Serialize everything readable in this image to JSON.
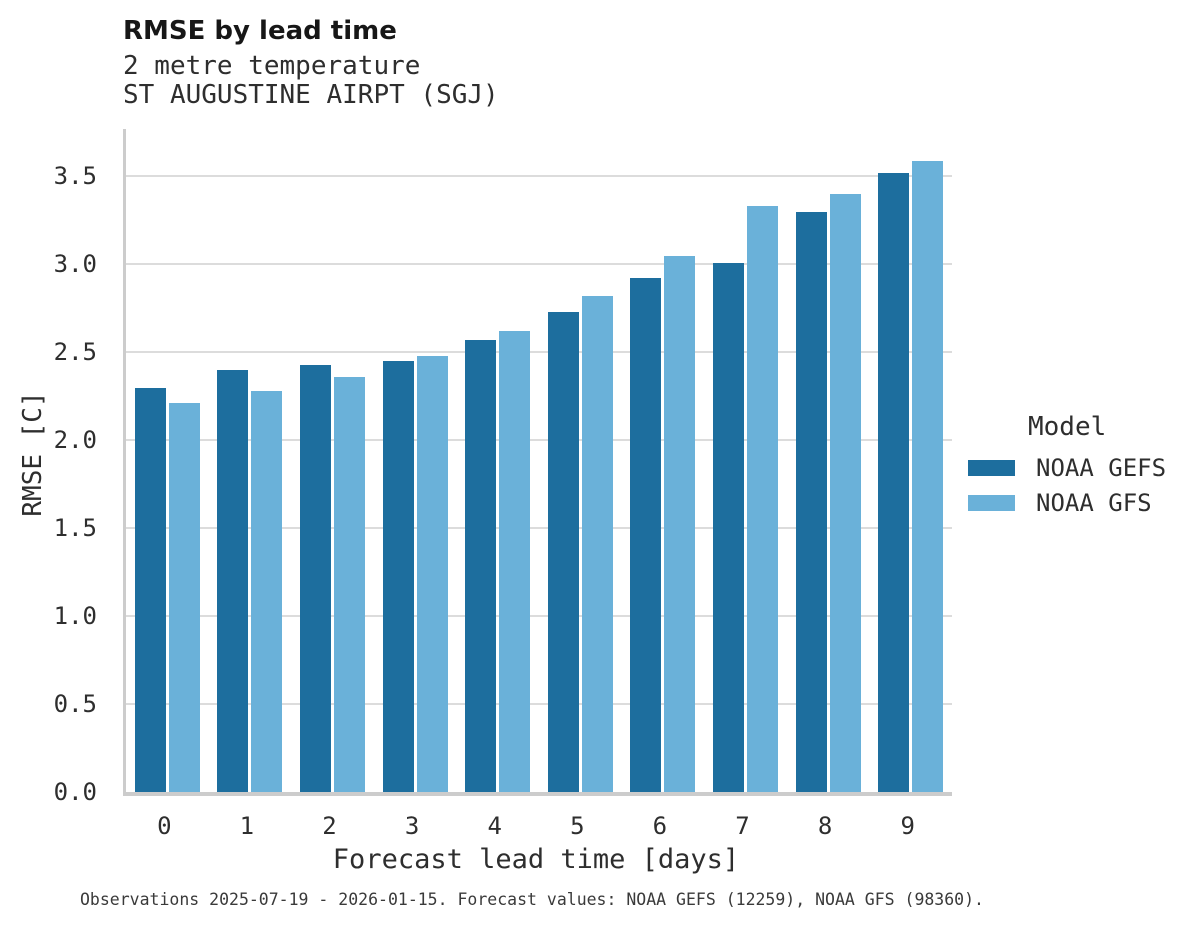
{
  "header": {
    "title": "RMSE by lead time",
    "subtitle1": "2 metre temperature",
    "subtitle2": "ST AUGUSTINE AIRPT (SGJ)"
  },
  "legend": {
    "title": "Model",
    "items": [
      {
        "label": "NOAA GEFS",
        "color": "#1d6e9e"
      },
      {
        "label": "NOAA GFS",
        "color": "#6ab1d9"
      }
    ]
  },
  "caption": "Observations 2025-07-19 - 2026-01-15. Forecast values: NOAA GEFS (12259), NOAA GFS (98360).",
  "chart_data": {
    "type": "bar",
    "title": "RMSE by lead time",
    "subtitle": [
      "2 metre temperature",
      "ST AUGUSTINE AIRPT (SGJ)"
    ],
    "categories": [
      "0",
      "1",
      "2",
      "3",
      "4",
      "5",
      "6",
      "7",
      "8",
      "9"
    ],
    "series": [
      {
        "name": "NOAA GEFS",
        "color": "#1d6e9e",
        "values": [
          2.3,
          2.4,
          2.43,
          2.45,
          2.57,
          2.73,
          2.92,
          3.01,
          3.3,
          3.52
        ]
      },
      {
        "name": "NOAA GFS",
        "color": "#6ab1d9",
        "values": [
          2.21,
          2.28,
          2.36,
          2.48,
          2.62,
          2.82,
          3.05,
          3.33,
          3.4,
          3.59
        ]
      }
    ],
    "xlabel": "Forecast lead time [days]",
    "ylabel": "RMSE [C]",
    "ylim": [
      0,
      3.77
    ],
    "yticks": [
      0.0,
      0.5,
      1.0,
      1.5,
      2.0,
      2.5,
      3.0,
      3.5
    ],
    "ytick_labels": [
      "0.0",
      "0.5",
      "1.0",
      "1.5",
      "2.0",
      "2.5",
      "3.0",
      "3.5"
    ],
    "grid": true,
    "legend_title": "Model",
    "legend_position": "right-outside"
  }
}
